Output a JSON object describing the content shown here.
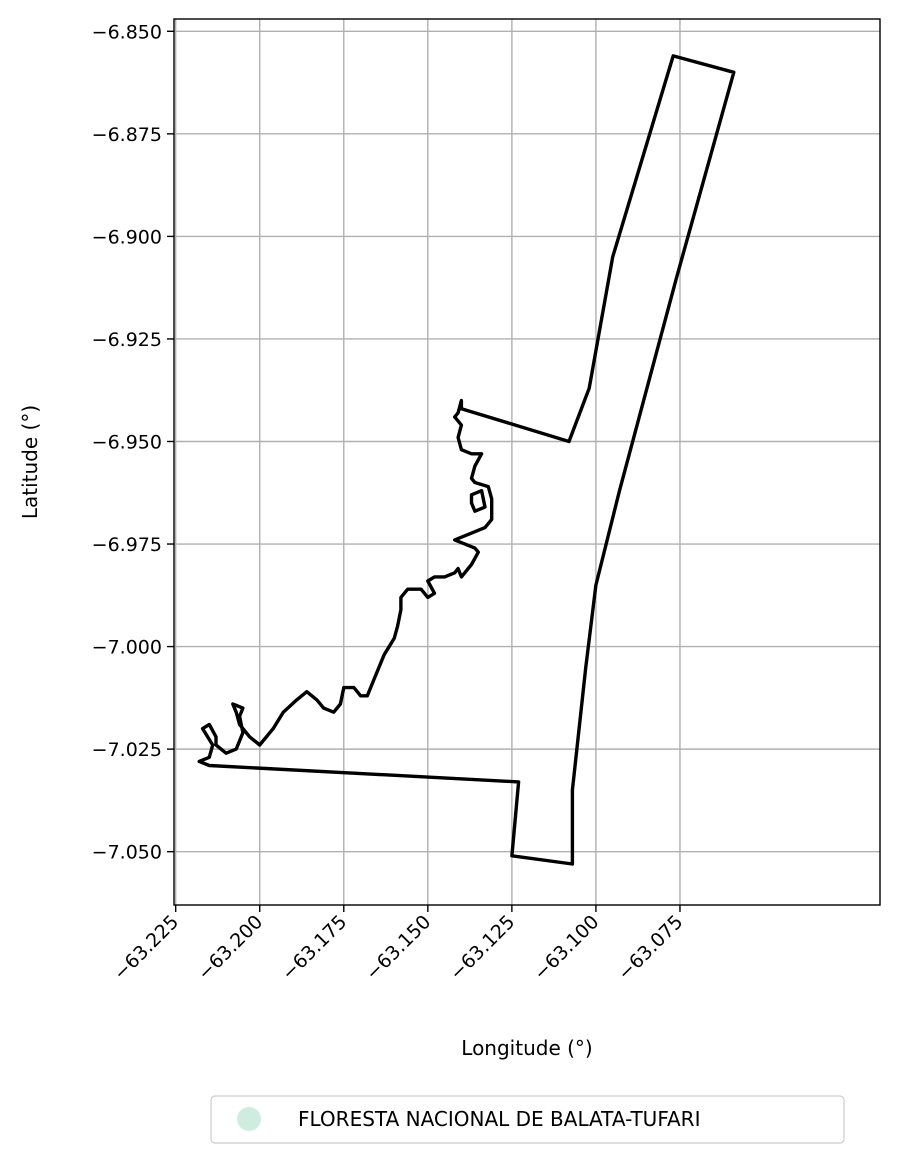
{
  "chart_data": {
    "type": "map",
    "xlabel": "Longitude (°)",
    "ylabel": "Latitude (°)",
    "xlim": [
      -63.2255,
      -63.0155
    ],
    "ylim": [
      -7.063,
      -6.847
    ],
    "xticks": [
      -63.225,
      -63.2,
      -63.175,
      -63.15,
      -63.125,
      -63.1,
      -63.075
    ],
    "xtick_labels": [
      "−63.225",
      "−63.200",
      "−63.175",
      "−63.150",
      "−63.125",
      "−63.100",
      "−63.075"
    ],
    "yticks": [
      -6.85,
      -6.875,
      -6.9,
      -6.925,
      -6.95,
      -6.975,
      -7.0,
      -7.025,
      -7.05
    ],
    "ytick_labels": [
      "−6.850",
      "−6.875",
      "−6.900",
      "−6.925",
      "−6.950",
      "−6.975",
      "−7.000",
      "−7.025",
      "−7.050"
    ],
    "grid": true,
    "legend": {
      "placement": "bottom-center",
      "entries": [
        {
          "label": "FLORESTA NACIONAL DE BALATA-TUFARI",
          "color": "#cfece1"
        }
      ]
    },
    "boundary_color": "#000000",
    "boundary": [
      [
        -63.077,
        -6.856
      ],
      [
        -63.059,
        -6.86
      ],
      [
        -63.076,
        -6.91
      ],
      [
        -63.093,
        -6.962
      ],
      [
        -63.1,
        -6.985
      ],
      [
        -63.103,
        -7.005
      ],
      [
        -63.107,
        -7.035
      ],
      [
        -63.107,
        -7.053
      ],
      [
        -63.125,
        -7.051
      ],
      [
        -63.123,
        -7.033
      ],
      [
        -63.215,
        -7.029
      ],
      [
        -63.218,
        -7.028
      ],
      [
        -63.215,
        -7.027
      ],
      [
        -63.214,
        -7.024
      ],
      [
        -63.217,
        -7.02
      ],
      [
        -63.215,
        -7.019
      ],
      [
        -63.213,
        -7.022
      ],
      [
        -63.213,
        -7.024
      ],
      [
        -63.21,
        -7.026
      ],
      [
        -63.207,
        -7.025
      ],
      [
        -63.205,
        -7.021
      ],
      [
        -63.206,
        -7.017
      ],
      [
        -63.205,
        -7.015
      ],
      [
        -63.208,
        -7.014
      ],
      [
        -63.207,
        -7.016
      ],
      [
        -63.206,
        -7.019
      ],
      [
        -63.203,
        -7.022
      ],
      [
        -63.2,
        -7.024
      ],
      [
        -63.196,
        -7.02
      ],
      [
        -63.193,
        -7.016
      ],
      [
        -63.189,
        -7.013
      ],
      [
        -63.186,
        -7.011
      ],
      [
        -63.183,
        -7.013
      ],
      [
        -63.181,
        -7.015
      ],
      [
        -63.178,
        -7.016
      ],
      [
        -63.176,
        -7.014
      ],
      [
        -63.175,
        -7.01
      ],
      [
        -63.172,
        -7.01
      ],
      [
        -63.17,
        -7.012
      ],
      [
        -63.168,
        -7.012
      ],
      [
        -63.166,
        -7.008
      ],
      [
        -63.165,
        -7.006
      ],
      [
        -63.163,
        -7.002
      ],
      [
        -63.16,
        -6.998
      ],
      [
        -63.159,
        -6.995
      ],
      [
        -63.158,
        -6.991
      ],
      [
        -63.158,
        -6.988
      ],
      [
        -63.156,
        -6.986
      ],
      [
        -63.152,
        -6.986
      ],
      [
        -63.15,
        -6.988
      ],
      [
        -63.148,
        -6.987
      ],
      [
        -63.15,
        -6.984
      ],
      [
        -63.148,
        -6.983
      ],
      [
        -63.145,
        -6.983
      ],
      [
        -63.142,
        -6.982
      ],
      [
        -63.141,
        -6.981
      ],
      [
        -63.14,
        -6.983
      ],
      [
        -63.137,
        -6.98
      ],
      [
        -63.135,
        -6.977
      ],
      [
        -63.136,
        -6.976
      ],
      [
        -63.142,
        -6.974
      ],
      [
        -63.136,
        -6.972
      ],
      [
        -63.133,
        -6.971
      ],
      [
        -63.131,
        -6.969
      ],
      [
        -63.131,
        -6.964
      ],
      [
        -63.132,
        -6.961
      ],
      [
        -63.136,
        -6.96
      ],
      [
        -63.137,
        -6.959
      ],
      [
        -63.136,
        -6.956
      ],
      [
        -63.134,
        -6.953
      ],
      [
        -63.137,
        -6.953
      ],
      [
        -63.14,
        -6.952
      ],
      [
        -63.141,
        -6.949
      ],
      [
        -63.14,
        -6.946
      ],
      [
        -63.142,
        -6.944
      ],
      [
        -63.141,
        -6.943
      ],
      [
        -63.14,
        -6.94
      ],
      [
        -63.14,
        -6.942
      ],
      [
        -63.108,
        -6.95
      ],
      [
        -63.102,
        -6.937
      ],
      [
        -63.095,
        -6.905
      ]
    ],
    "boundary_inner": [
      [
        -63.137,
        -6.963
      ],
      [
        -63.134,
        -6.962
      ],
      [
        -63.133,
        -6.966
      ],
      [
        -63.136,
        -6.967
      ],
      [
        -63.137,
        -6.965
      ]
    ]
  }
}
